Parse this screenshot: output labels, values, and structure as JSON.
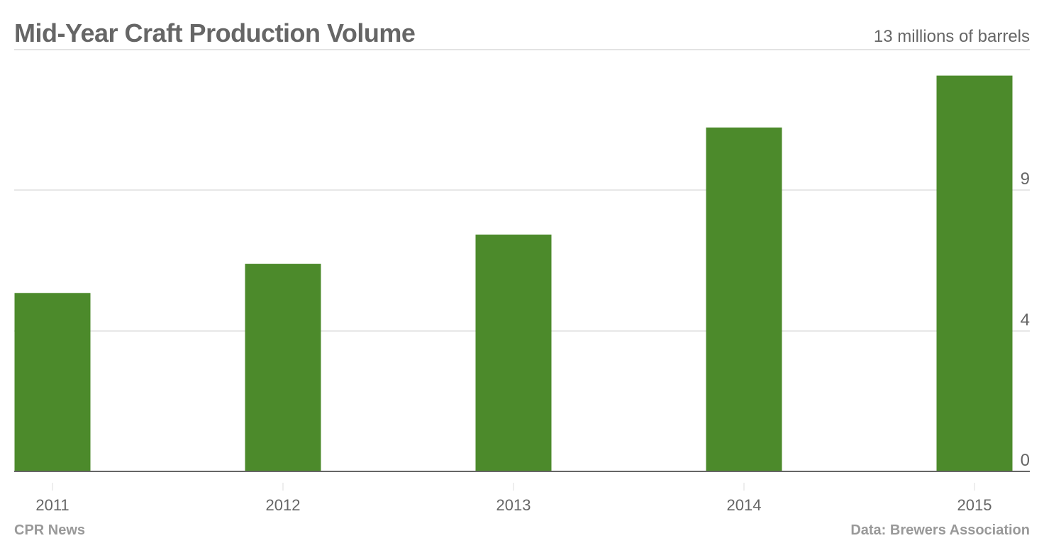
{
  "chart_data": {
    "type": "bar",
    "title": "Mid-Year Craft Production Volume",
    "unit_label": "13 millions of barrels",
    "categories": [
      "2011",
      "2012",
      "2013",
      "2014",
      "2015"
    ],
    "values": [
      5.5,
      6.4,
      7.3,
      10.6,
      12.2
    ],
    "ylim": [
      0,
      13
    ],
    "yticks": [
      0,
      4.33,
      8.67
    ],
    "ytick_labels": [
      "0",
      "4",
      "9"
    ],
    "grid": true,
    "y_axis_side": "right",
    "bar_color": "#4c8a2b"
  },
  "footer": {
    "source_left": "CPR News",
    "source_right": "Data: Brewers Association"
  }
}
